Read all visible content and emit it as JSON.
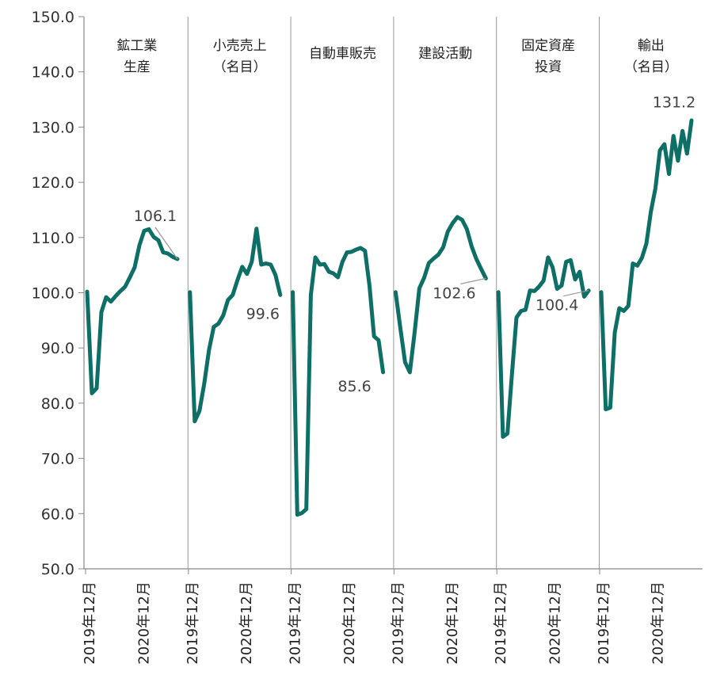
{
  "chart_data": {
    "type": "line",
    "ylim": [
      50,
      150
    ],
    "yticks": [
      "50.0",
      "60.0",
      "70.0",
      "80.0",
      "90.0",
      "100.0",
      "110.0",
      "120.0",
      "130.0",
      "140.0",
      "150.0"
    ],
    "line_color": "#0e6f66",
    "callout_color": "#999999",
    "divider_color": "#999999",
    "panels": [
      {
        "title": [
          "鉱工業",
          "生産"
        ],
        "x_labels": [
          "2019年12月",
          "2020年12月"
        ],
        "end_label": "106.1",
        "values": [
          100.2,
          81.8,
          82.7,
          96.5,
          99.2,
          98.4,
          99.4,
          100.3,
          101.1,
          102.8,
          104.6,
          108.6,
          111.2,
          111.5,
          110.1,
          109.5,
          107.3,
          107.1,
          106.5,
          106.1
        ]
      },
      {
        "title": [
          "小売売上",
          "（名目）"
        ],
        "x_labels": [
          "2019年12月",
          "2020年12月"
        ],
        "end_label": "99.6",
        "values": [
          100.1,
          76.7,
          78.6,
          83.5,
          89.6,
          93.8,
          94.4,
          95.9,
          98.7,
          99.6,
          102.3,
          104.7,
          103.4,
          105.6,
          111.6,
          105.1,
          105.3,
          105.1,
          103.2,
          99.6
        ]
      },
      {
        "title": [
          "自動車販売"
        ],
        "x_labels": [
          "2019年12月",
          "2020年12月"
        ],
        "end_label": "85.6",
        "values": [
          100.1,
          59.8,
          60.1,
          60.8,
          99.6,
          106.4,
          105.1,
          105.2,
          103.8,
          103.5,
          102.8,
          105.6,
          107.3,
          107.4,
          107.8,
          108.1,
          107.6,
          101.2,
          92.1,
          91.4,
          85.6
        ]
      },
      {
        "title": [
          "建設活動"
        ],
        "x_labels": [
          "2019年12月",
          "2020年12月"
        ],
        "end_label": "102.6",
        "values": [
          100.1,
          93.6,
          87.4,
          85.6,
          92.8,
          100.8,
          102.7,
          105.4,
          106.2,
          106.9,
          108.2,
          111.1,
          112.6,
          113.7,
          113.2,
          111.5,
          108.4,
          106.1,
          104.3,
          102.6
        ]
      },
      {
        "title": [
          "固定資産",
          "投資"
        ],
        "x_labels": [
          "2019年12月",
          "2020年12月"
        ],
        "end_label": "100.4",
        "values": [
          100.1,
          73.9,
          74.5,
          85.3,
          95.5,
          96.7,
          96.9,
          100.4,
          100.3,
          101.1,
          102.2,
          106.4,
          104.6,
          100.7,
          101.3,
          105.6,
          105.9,
          102.4,
          103.8,
          99.3,
          100.4
        ]
      },
      {
        "title": [
          "輸出",
          "（名目）"
        ],
        "x_labels": [
          "2019年12月",
          "2020年12月"
        ],
        "end_label": "131.2",
        "values": [
          100.1,
          78.9,
          79.2,
          92.8,
          97.2,
          96.7,
          97.6,
          105.3,
          104.9,
          106.3,
          108.9,
          114.7,
          118.9,
          125.8,
          126.9,
          121.5,
          128.4,
          123.9,
          129.3,
          125.2,
          131.2
        ]
      }
    ]
  }
}
